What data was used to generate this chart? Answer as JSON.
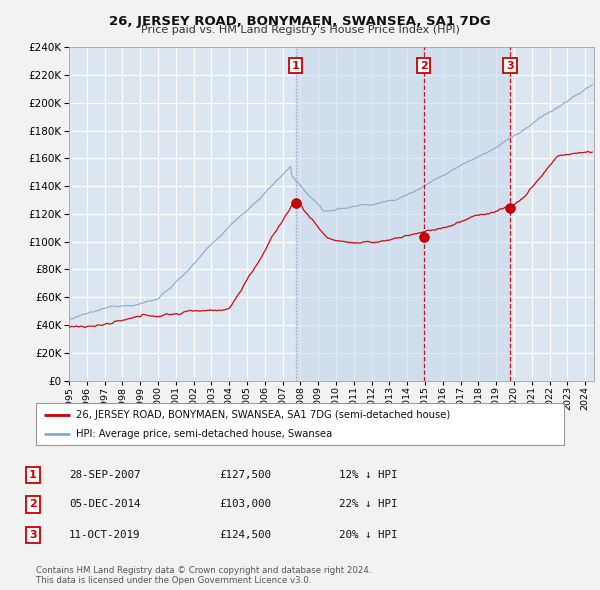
{
  "title": "26, JERSEY ROAD, BONYMAEN, SWANSEA, SA1 7DG",
  "subtitle": "Price paid vs. HM Land Registry's House Price Index (HPI)",
  "legend_line1": "26, JERSEY ROAD, BONYMAEN, SWANSEA, SA1 7DG (semi-detached house)",
  "legend_line2": "HPI: Average price, semi-detached house, Swansea",
  "price_color": "#cc0000",
  "hpi_color": "#88aacc",
  "background_color": "#f2f2f2",
  "plot_bg_color": "#dce6f0",
  "grid_color": "#ffffff",
  "shade_color": "#ccdaee",
  "sale_markers": [
    {
      "label": "1",
      "date_num": 2007.74,
      "price": 127500,
      "vline_color": "#8888bb",
      "vline_style": ":"
    },
    {
      "label": "2",
      "date_num": 2014.92,
      "price": 103000,
      "vline_color": "#cc0000",
      "vline_style": "--"
    },
    {
      "label": "3",
      "date_num": 2019.78,
      "price": 124500,
      "vline_color": "#cc0000",
      "vline_style": "--"
    }
  ],
  "table_rows": [
    {
      "num": "1",
      "date": "28-SEP-2007",
      "price": "£127,500",
      "change": "12% ↓ HPI"
    },
    {
      "num": "2",
      "date": "05-DEC-2014",
      "price": "£103,000",
      "change": "22% ↓ HPI"
    },
    {
      "num": "3",
      "date": "11-OCT-2019",
      "price": "£124,500",
      "change": "20% ↓ HPI"
    }
  ],
  "footer": "Contains HM Land Registry data © Crown copyright and database right 2024.\nThis data is licensed under the Open Government Licence v3.0.",
  "ylim": [
    0,
    240000
  ],
  "yticks": [
    0,
    20000,
    40000,
    60000,
    80000,
    100000,
    120000,
    140000,
    160000,
    180000,
    200000,
    220000,
    240000
  ],
  "xlim_start": 1995.0,
  "xlim_end": 2024.5
}
